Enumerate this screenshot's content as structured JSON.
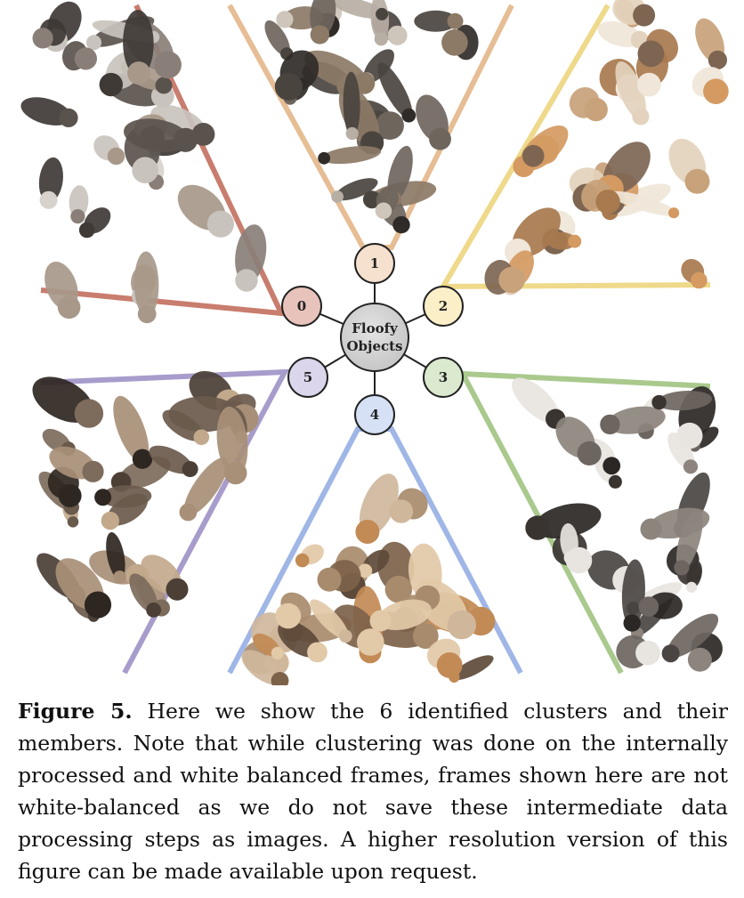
{
  "figure": {
    "center_label_line1": "Floofy",
    "center_label_line2": "Objects",
    "clusters": [
      {
        "label": "0",
        "color": "#c97d6e",
        "fill": "#e8c3bc"
      },
      {
        "label": "1",
        "color": "#e6bd94",
        "fill": "#f6e1cf"
      },
      {
        "label": "2",
        "color": "#efd98a",
        "fill": "#fbefc8"
      },
      {
        "label": "3",
        "color": "#a9c98d",
        "fill": "#dbe9cf"
      },
      {
        "label": "4",
        "color": "#9fb6e6",
        "fill": "#d6e1f6"
      },
      {
        "label": "5",
        "color": "#a79ccb",
        "fill": "#dbd6ec"
      }
    ],
    "image_description": "cat photographs"
  },
  "caption": {
    "label": "Figure 5.",
    "text": "Here we show the 6 identified clusters and their members. Note that while clustering was done on the internally processed and white balanced frames, frames shown here are not white-balanced as we do not save these intermediate data processing steps as images. A higher resolution version of this figure can be made available upon request."
  }
}
